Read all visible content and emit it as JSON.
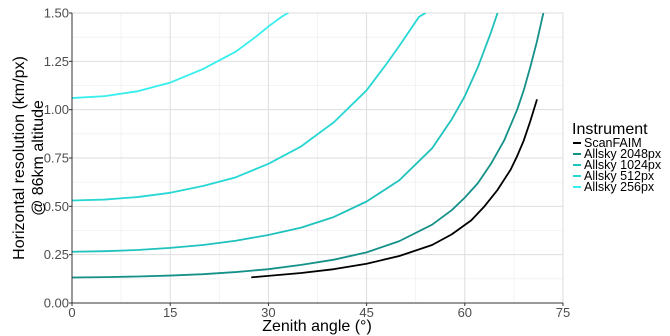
{
  "chart_data": {
    "type": "line",
    "title": "",
    "xlabel": "Zenith angle (°)",
    "ylabel_lines": [
      "Horizontal resolution (km/px)",
      "@ 86km altitude"
    ],
    "xlim": [
      0,
      75
    ],
    "ylim": [
      0,
      1.5
    ],
    "x_ticks": [
      0,
      15,
      30,
      45,
      60,
      75
    ],
    "y_ticks": [
      0.0,
      0.25,
      0.5,
      0.75,
      1.0,
      1.25,
      1.5
    ],
    "x_tick_labels": [
      "0",
      "15",
      "30",
      "45",
      "60",
      "75"
    ],
    "y_tick_labels": [
      "0.00",
      "0.25",
      "0.50",
      "0.75",
      "1.00",
      "1.25",
      "1.50"
    ],
    "grid": true,
    "legend": {
      "title": "Instrument",
      "placement": "right",
      "entries": [
        "ScanFAIM",
        "Allsky 2048px",
        "Allsky 1024px",
        "Allsky 512px",
        "Allsky 256px"
      ]
    },
    "series": [
      {
        "name": "ScanFAIM",
        "color": "#000000",
        "x": [
          27.5,
          35,
          40,
          45,
          50,
          55,
          58,
          61,
          63,
          65,
          67,
          68,
          69,
          70,
          71
        ],
        "y": [
          0.133,
          0.155,
          0.175,
          0.203,
          0.243,
          0.3,
          0.355,
          0.428,
          0.5,
          0.585,
          0.69,
          0.76,
          0.84,
          0.94,
          1.05
        ]
      },
      {
        "name": "Allsky 2048px",
        "color": "#159189",
        "x": [
          0,
          5,
          10,
          15,
          20,
          25,
          30,
          35,
          40,
          45,
          50,
          55,
          58,
          60,
          62,
          64,
          66,
          68,
          69,
          70,
          71,
          72
        ],
        "y": [
          0.132,
          0.134,
          0.137,
          0.142,
          0.149,
          0.16,
          0.175,
          0.197,
          0.224,
          0.262,
          0.32,
          0.405,
          0.48,
          0.545,
          0.62,
          0.72,
          0.84,
          1.0,
          1.1,
          1.22,
          1.35,
          1.5
        ]
      },
      {
        "name": "Allsky 1024px",
        "color": "#1fc2bd",
        "x": [
          0,
          5,
          10,
          15,
          20,
          25,
          30,
          35,
          40,
          45,
          50,
          55,
          58,
          60,
          62,
          63,
          64,
          65
        ],
        "y": [
          0.265,
          0.268,
          0.274,
          0.285,
          0.3,
          0.322,
          0.352,
          0.39,
          0.445,
          0.525,
          0.635,
          0.8,
          0.95,
          1.07,
          1.22,
          1.31,
          1.4,
          1.5
        ]
      },
      {
        "name": "Allsky 512px",
        "color": "#26d7d4",
        "x": [
          0,
          5,
          10,
          15,
          20,
          25,
          30,
          35,
          40,
          45,
          48,
          50,
          52,
          53,
          54
        ],
        "y": [
          0.53,
          0.535,
          0.548,
          0.57,
          0.605,
          0.65,
          0.72,
          0.81,
          0.935,
          1.1,
          1.235,
          1.33,
          1.43,
          1.48,
          1.5
        ]
      },
      {
        "name": "Allsky 256px",
        "color": "#37eeee",
        "x": [
          0,
          5,
          10,
          15,
          20,
          25,
          28,
          30,
          31,
          32,
          33
        ],
        "y": [
          1.06,
          1.07,
          1.095,
          1.14,
          1.21,
          1.3,
          1.375,
          1.43,
          1.455,
          1.48,
          1.5
        ]
      }
    ]
  }
}
